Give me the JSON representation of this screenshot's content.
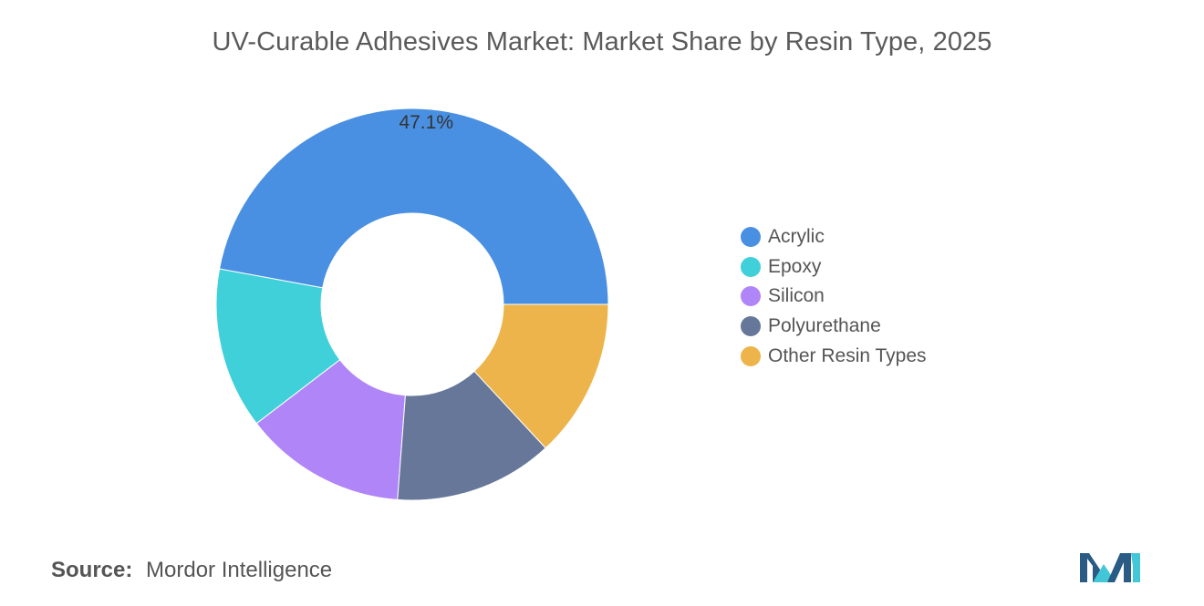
{
  "chart_data": {
    "type": "pie",
    "donut": true,
    "title": "UV-Curable Adhesives Market: Market Share by Resin Type, 2025",
    "categories": [
      "Acrylic",
      "Epoxy",
      "Silicon",
      "Polyurethane",
      "Other Resin Types"
    ],
    "values": [
      47.1,
      13.3,
      13.4,
      13.1,
      13.1
    ],
    "data_labels": [
      "47.1%",
      "",
      "",
      "",
      ""
    ],
    "colors": [
      "#4a90e2",
      "#3fd0d9",
      "#b085f7",
      "#667799",
      "#ecb44a"
    ],
    "legend_position": "right"
  },
  "source": {
    "label": "Source:",
    "text": "Mordor Intelligence"
  },
  "logo": {
    "icon": "mordor-intelligence-logo-icon",
    "colors": [
      "#2a5b84",
      "#43c6d6"
    ]
  }
}
